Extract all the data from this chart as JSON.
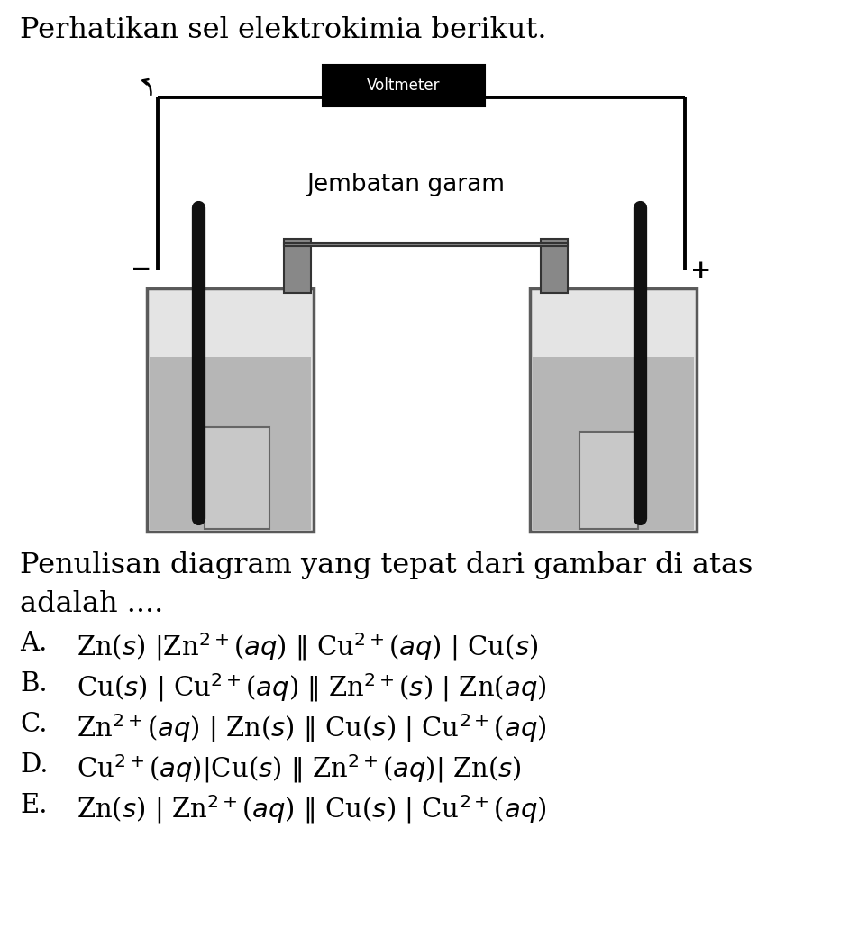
{
  "title": "Perhatikan sel elektrokimia berikut.",
  "question_line1": "Penulisan diagram yang tepat dari gambar di atas",
  "question_line2": "adalah ....",
  "options": [
    {
      "label": "A.",
      "math": "Zn($s$) |Zn$^{2+}$($aq$) || Cu$^{2+}$($aq$) | Cu($s$)"
    },
    {
      "label": "B.",
      "math": "Cu($s$) | Cu$^{2+}$($aq$) || Zn$^{2+}$($s$) | Zn($aq$)"
    },
    {
      "label": "C.",
      "math": "Zn$^{2+}$($aq$) | Zn($s$) || Cu($s$) | Cu$^{2+}$($aq$)"
    },
    {
      "label": "D.",
      "math": "Cu$^{2+}$($aq$)|Cu($s$) || Zn$^{2+}$($aq$)| Zn($s$)"
    },
    {
      "label": "E.",
      "math": "Zn($s$) | Zn$^{2+}$($aq$) || Cu($s$) | Cu$^{2+}$($aq$)"
    }
  ],
  "voltmeter_label": "Voltmeter",
  "salt_bridge_label": "Jembatan garam",
  "minus_label": "−",
  "plus_label": "+",
  "bg_color": "#ffffff",
  "text_color": "#000000",
  "title_fontsize": 23,
  "option_fontsize": 21,
  "question_fontsize": 23,
  "label_fontsize": 21
}
